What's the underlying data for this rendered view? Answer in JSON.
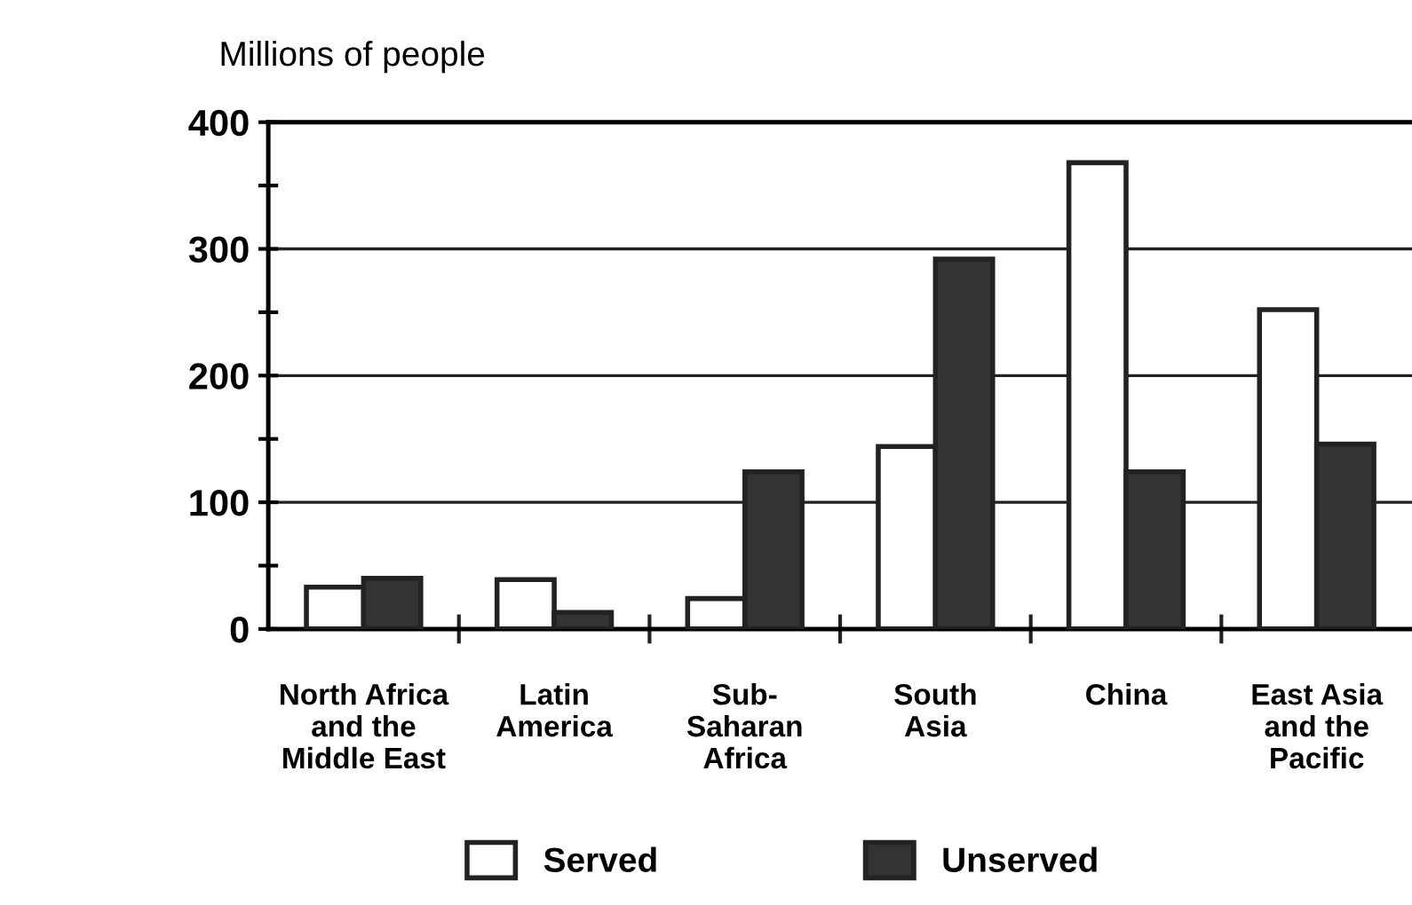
{
  "chart_data": {
    "type": "bar",
    "ylabel": "Millions of people",
    "categories": [
      "North Africa\nand the\nMiddle East",
      "Latin\nAmerica",
      "Sub-\nSaharan\nAfrica",
      "South\nAsia",
      "China",
      "East Asia\nand the\nPacific"
    ],
    "series": [
      {
        "name": "Served",
        "color": "#ffffff",
        "values": [
          33,
          39,
          24,
          144,
          368,
          252
        ]
      },
      {
        "name": "Unserved",
        "color": "#333333",
        "values": [
          40,
          13,
          124,
          292,
          124,
          146
        ]
      }
    ],
    "ylim": [
      0,
      400
    ],
    "yticks": [
      0,
      100,
      200,
      300,
      400
    ],
    "grid": "y",
    "legend": "bottom"
  }
}
